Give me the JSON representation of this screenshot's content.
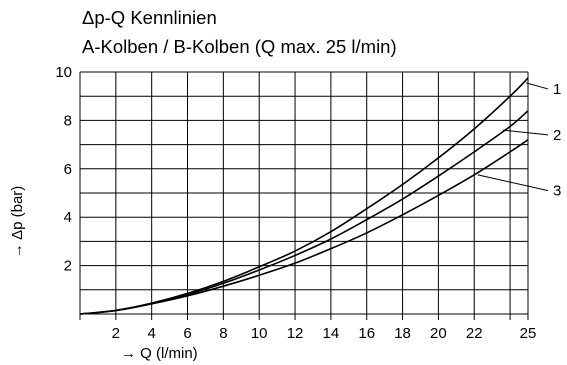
{
  "chart_data": {
    "type": "line",
    "title": "Δp-Q Kennlinien",
    "subtitle": "A-Kolben / B-Kolben (Q max. 25 l/min)",
    "xlabel": "→ Q (l/min)",
    "ylabel": "→ Δp (bar)",
    "xlim": [
      0,
      25
    ],
    "ylim": [
      0,
      10
    ],
    "x_ticks": [
      2,
      4,
      6,
      8,
      10,
      12,
      14,
      16,
      18,
      20,
      22,
      25
    ],
    "y_ticks": [
      2,
      4,
      6,
      8,
      10
    ],
    "grid": true,
    "series": [
      {
        "name": "1",
        "x": [
          0,
          2,
          4,
          6,
          8,
          10,
          12,
          14,
          16,
          18,
          20,
          22,
          24,
          25
        ],
        "y": [
          0,
          0.15,
          0.45,
          0.85,
          1.35,
          1.95,
          2.6,
          3.4,
          4.35,
          5.35,
          6.45,
          7.65,
          9.0,
          9.75
        ]
      },
      {
        "name": "2",
        "x": [
          0,
          2,
          4,
          6,
          8,
          10,
          12,
          14,
          16,
          18,
          20,
          22,
          24,
          25
        ],
        "y": [
          0,
          0.15,
          0.43,
          0.8,
          1.27,
          1.82,
          2.42,
          3.1,
          3.9,
          4.75,
          5.7,
          6.7,
          7.75,
          8.4
        ]
      },
      {
        "name": "3",
        "x": [
          0,
          2,
          4,
          6,
          8,
          10,
          12,
          14,
          16,
          18,
          20,
          22,
          24,
          25
        ],
        "y": [
          0,
          0.14,
          0.42,
          0.75,
          1.15,
          1.6,
          2.1,
          2.7,
          3.35,
          4.1,
          4.9,
          5.75,
          6.7,
          7.2
        ]
      }
    ],
    "label_y": [
      9.3,
      7.4,
      5.1
    ]
  }
}
